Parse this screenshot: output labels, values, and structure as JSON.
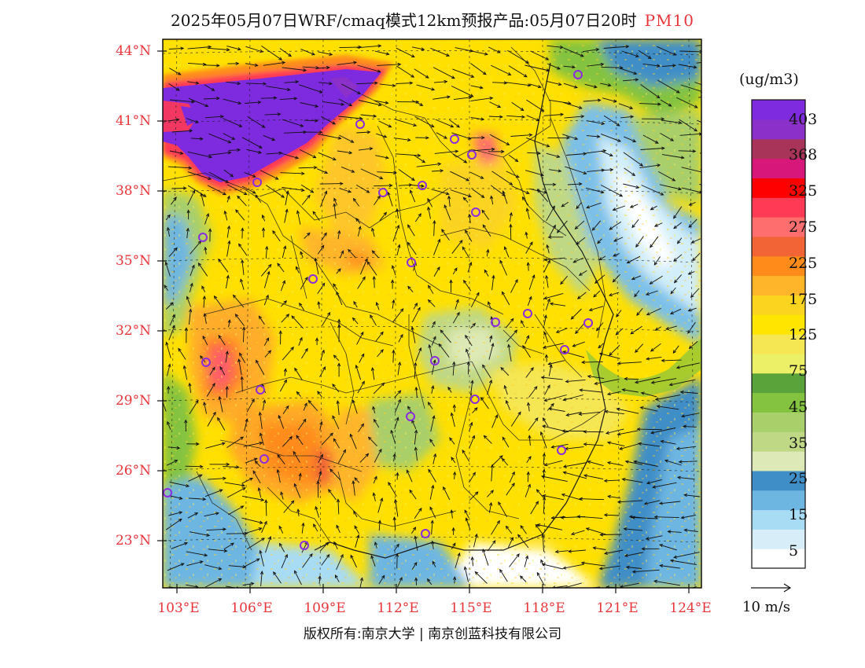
{
  "title": {
    "main": "2025年05月07日WRF/cmaq模式12km预报产品:05月07日20时",
    "pollutant": "PM10"
  },
  "map": {
    "lon_range": [
      103,
      124
    ],
    "lat_range": [
      21,
      44.3
    ],
    "lat_ticks": [
      "44°N",
      "41°N",
      "38°N",
      "35°N",
      "32°N",
      "29°N",
      "26°N",
      "23°N"
    ],
    "lon_ticks": [
      "103°E",
      "106°E",
      "109°E",
      "112°E",
      "115°E",
      "118°E",
      "121°E",
      "124°E"
    ]
  },
  "colorbar": {
    "unit": "(ug/m3)",
    "colors": [
      "#ffffff",
      "#d7eef8",
      "#a8dcf5",
      "#6db6e2",
      "#3f8ec8",
      "#dde9b6",
      "#bfd885",
      "#a8cf6a",
      "#84c340",
      "#5aa23a",
      "#ecf066",
      "#f5e653",
      "#ffe500",
      "#fbd420",
      "#ffb52a",
      "#ff8b1a",
      "#f26336",
      "#ff6e6e",
      "#ff3a54",
      "#ff0000",
      "#d8177a",
      "#a8345a",
      "#8b30c8",
      "#7e2be0"
    ],
    "labels": [
      "5",
      "15",
      "25",
      "35",
      "45",
      "75",
      "125",
      "175",
      "225",
      "275",
      "325",
      "368",
      "403"
    ]
  },
  "wind_legend": {
    "label": "10 m/s"
  },
  "copyright": "版权所有:南京大学 | 南京创蓝科技有限公司"
}
